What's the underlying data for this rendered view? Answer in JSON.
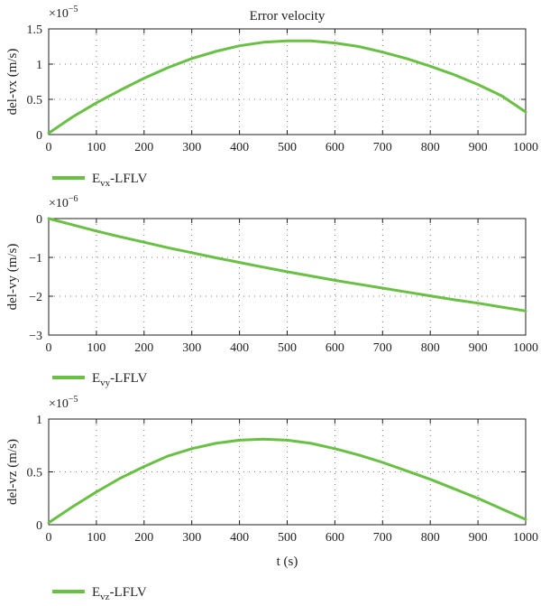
{
  "chart_data": [
    {
      "type": "line",
      "title": "Error velocity",
      "xlabel": "",
      "ylabel": "del-vx (m/s)",
      "exponent": "×10",
      "exponent_power": "−5",
      "xlim": [
        0,
        1000
      ],
      "ylim": [
        0,
        1.5
      ],
      "grid": true,
      "xticks": [
        "0",
        "100",
        "200",
        "300",
        "400",
        "500",
        "600",
        "700",
        "800",
        "900",
        "1000"
      ],
      "yticks": [
        {
          "value": 0,
          "label": "0"
        },
        {
          "value": 0.5,
          "label": "0.5"
        },
        {
          "value": 1,
          "label": "1"
        },
        {
          "value": 1.5,
          "label": "1.5"
        }
      ],
      "legend_placement": "below",
      "series": [
        {
          "legend_main": "E",
          "legend_sub": "vx",
          "legend_suffix": "-LFLV",
          "color": "#6abf45",
          "x": [
            0,
            50,
            100,
            150,
            200,
            250,
            300,
            350,
            400,
            450,
            500,
            550,
            600,
            650,
            700,
            750,
            800,
            850,
            900,
            950,
            1000
          ],
          "y": [
            0.02,
            0.25,
            0.45,
            0.63,
            0.8,
            0.95,
            1.08,
            1.18,
            1.26,
            1.31,
            1.33,
            1.33,
            1.3,
            1.25,
            1.17,
            1.08,
            0.97,
            0.85,
            0.71,
            0.55,
            0.32
          ]
        }
      ]
    },
    {
      "type": "line",
      "title": "",
      "xlabel": "",
      "ylabel": "del-vy (m/s)",
      "exponent": "×10",
      "exponent_power": "−6",
      "xlim": [
        0,
        1000
      ],
      "ylim": [
        -3,
        0
      ],
      "grid": true,
      "xticks": [
        "0",
        "100",
        "200",
        "300",
        "400",
        "500",
        "600",
        "700",
        "800",
        "900",
        "1000"
      ],
      "yticks": [
        {
          "value": 0,
          "label": "0"
        },
        {
          "value": -1,
          "label": "−1"
        },
        {
          "value": -2,
          "label": "−2"
        },
        {
          "value": -3,
          "label": "−3"
        }
      ],
      "legend_placement": "below",
      "series": [
        {
          "legend_main": "E",
          "legend_sub": "vy",
          "legend_suffix": "-LFLV",
          "color": "#6abf45",
          "x": [
            0,
            50,
            100,
            150,
            200,
            250,
            300,
            350,
            400,
            450,
            500,
            550,
            600,
            650,
            700,
            750,
            800,
            850,
            900,
            950,
            1000
          ],
          "y": [
            0,
            -0.16,
            -0.32,
            -0.47,
            -0.61,
            -0.75,
            -0.88,
            -1.01,
            -1.13,
            -1.25,
            -1.37,
            -1.48,
            -1.59,
            -1.69,
            -1.79,
            -1.89,
            -1.99,
            -2.09,
            -2.18,
            -2.28,
            -2.38
          ]
        }
      ]
    },
    {
      "type": "line",
      "title": "",
      "xlabel": "t (s)",
      "ylabel": "del-vz (m/s)",
      "exponent": "×10",
      "exponent_power": "−5",
      "xlim": [
        0,
        1000
      ],
      "ylim": [
        0,
        1
      ],
      "grid": true,
      "xticks": [
        "0",
        "100",
        "200",
        "300",
        "400",
        "500",
        "600",
        "700",
        "800",
        "900",
        "1000"
      ],
      "yticks": [
        {
          "value": 0,
          "label": "0"
        },
        {
          "value": 0.5,
          "label": "0.5"
        },
        {
          "value": 1,
          "label": "1"
        }
      ],
      "legend_placement": "below",
      "series": [
        {
          "legend_main": "E",
          "legend_sub": "vz",
          "legend_suffix": "-LFLV",
          "color": "#6abf45",
          "x": [
            0,
            50,
            100,
            150,
            200,
            250,
            300,
            350,
            400,
            450,
            500,
            550,
            600,
            650,
            700,
            750,
            800,
            850,
            900,
            950,
            1000
          ],
          "y": [
            0.02,
            0.17,
            0.31,
            0.44,
            0.55,
            0.65,
            0.72,
            0.77,
            0.8,
            0.81,
            0.8,
            0.77,
            0.72,
            0.66,
            0.59,
            0.51,
            0.43,
            0.34,
            0.25,
            0.15,
            0.05
          ]
        }
      ]
    }
  ]
}
